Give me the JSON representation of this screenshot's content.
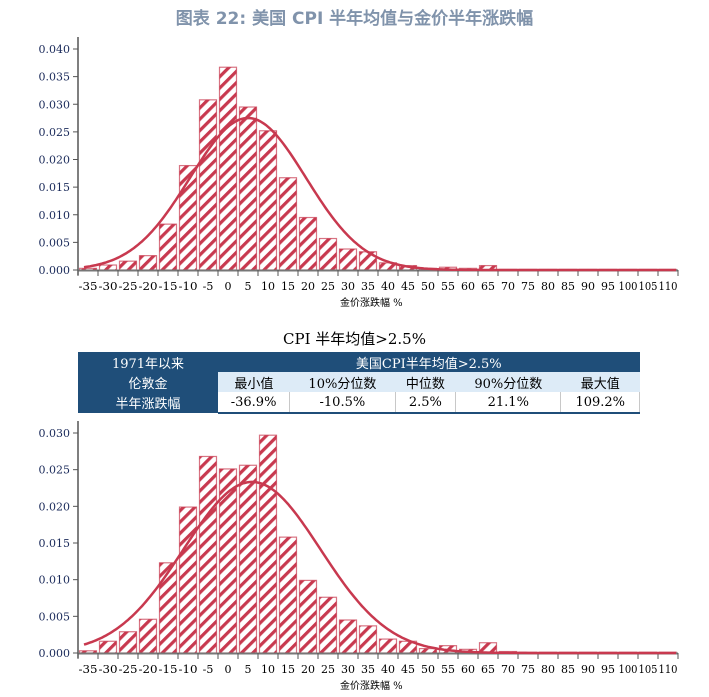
{
  "title": "图表 22: 美国 CPI 半年均值与金价半年涨跌幅",
  "colors": {
    "bar": "#c8394f",
    "curve": "#c8394f",
    "table_header": "#1f4e79",
    "table_subheader": "#ddebf7",
    "title": "#8093ab"
  },
  "table": {
    "caption": "CPI 半年均值>2.5%",
    "row_labels": [
      "1971年以来",
      "伦敦金",
      "半年涨跌幅"
    ],
    "group_header": "美国CPI半年均值>2.5%",
    "columns": [
      "最小值",
      "10%分位数",
      "中位数",
      "90%分位数",
      "最大值"
    ],
    "values": [
      "-36.9%",
      "-10.5%",
      "2.5%",
      "21.1%",
      "109.2%"
    ]
  },
  "chart_data": [
    {
      "type": "bar",
      "xlabel": "金价涨跌幅 %",
      "ylabel": "",
      "categories": [
        "-35",
        "-30",
        "-25",
        "-20",
        "-15",
        "-10",
        "-5",
        "0",
        "5",
        "10",
        "15",
        "20",
        "25",
        "30",
        "35",
        "40",
        "45",
        "50",
        "55",
        "60",
        "65",
        "70",
        "75",
        "80",
        "85",
        "90",
        "95",
        "100",
        "105",
        "110"
      ],
      "values": [
        0.0003,
        0.0009,
        0.0016,
        0.0026,
        0.0083,
        0.0189,
        0.0308,
        0.0367,
        0.0295,
        0.0252,
        0.0167,
        0.0095,
        0.0057,
        0.0038,
        0.0033,
        0.0013,
        0.0008,
        0.0003,
        0.0005,
        0.0003,
        0.0008,
        0.0001,
        0.0001,
        0.0001,
        0.0001,
        0.0001,
        0.0001,
        0.0001,
        0.0001,
        0.0001
      ],
      "yticks": [
        "0.000",
        "0.005",
        "0.010",
        "0.015",
        "0.020",
        "0.025",
        "0.030",
        "0.035",
        "0.040"
      ],
      "ylim": [
        0,
        0.04
      ],
      "fitted_curve": {
        "type": "normal",
        "mean": 5,
        "sd": 14.5
      },
      "grid": false
    },
    {
      "type": "bar",
      "xlabel": "金价涨跌幅 %",
      "ylabel": "",
      "categories": [
        "-35",
        "-30",
        "-25",
        "-20",
        "-15",
        "-10",
        "-5",
        "0",
        "5",
        "10",
        "15",
        "20",
        "25",
        "30",
        "35",
        "40",
        "45",
        "50",
        "55",
        "60",
        "65",
        "70",
        "75",
        "80",
        "85",
        "90",
        "95",
        "100",
        "105",
        "110"
      ],
      "values": [
        0.0003,
        0.0016,
        0.0029,
        0.0046,
        0.0123,
        0.0199,
        0.0268,
        0.0251,
        0.0256,
        0.0297,
        0.0158,
        0.0099,
        0.0076,
        0.0045,
        0.0037,
        0.0019,
        0.0016,
        0.0006,
        0.001,
        0.0005,
        0.0014,
        0.0002,
        0.0001,
        0.0001,
        0.0001,
        0.0001,
        0.0001,
        0.0001,
        0.0001,
        0.0001
      ],
      "yticks": [
        "0.000",
        "0.005",
        "0.010",
        "0.015",
        "0.020",
        "0.025",
        "0.030"
      ],
      "ylim": [
        0,
        0.03
      ],
      "fitted_curve": {
        "type": "normal",
        "mean": 6,
        "sd": 17.1
      },
      "grid": false
    }
  ]
}
